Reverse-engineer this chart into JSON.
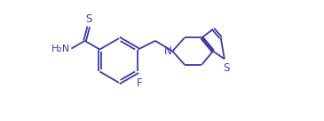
{
  "bg_color": "#ffffff",
  "line_color": "#3a3aaa",
  "text_color": "#3a3aaa",
  "line_width": 1.3,
  "font_size": 8.0,
  "figsize": [
    3.65,
    1.36
  ],
  "dpi": 100,
  "xlim": [
    0,
    13
  ],
  "ylim": [
    0,
    7
  ]
}
